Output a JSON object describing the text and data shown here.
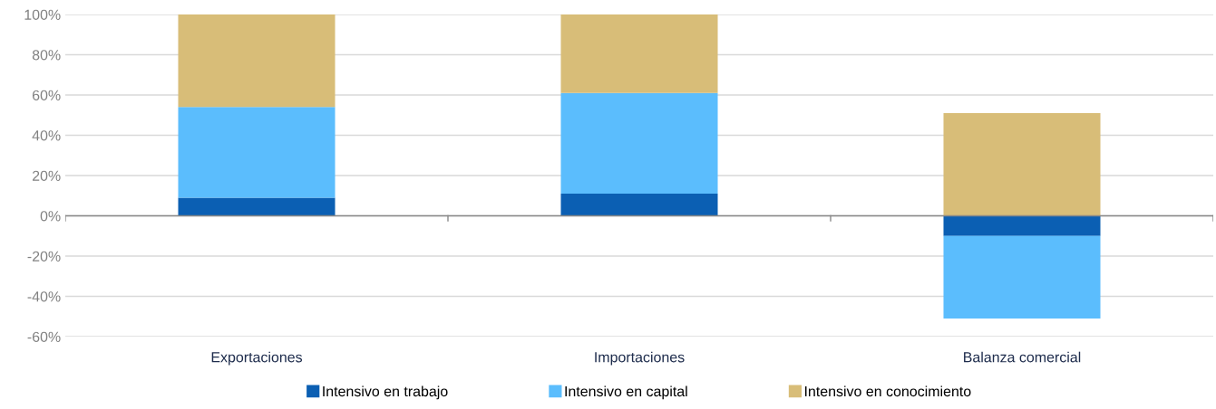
{
  "chart_data": {
    "type": "bar",
    "stacked": true,
    "categories": [
      "Exportaciones",
      "Importaciones",
      "Balanza comercial"
    ],
    "series": [
      {
        "name": "Intensivo en trabajo",
        "color": "#0b5fb3",
        "values": [
          9,
          11,
          -10
        ]
      },
      {
        "name": "Intensivo en capital",
        "color": "#5bbdfd",
        "values": [
          45,
          50,
          -41
        ]
      },
      {
        "name": "Intensivo en conocimiento",
        "color": "#d8bd78",
        "values": [
          46,
          39,
          51
        ]
      }
    ],
    "ylim": [
      -60,
      100
    ],
    "yticks": [
      {
        "value": -60,
        "label": "-60%"
      },
      {
        "value": -40,
        "label": "-40%"
      },
      {
        "value": -20,
        "label": "-20%"
      },
      {
        "value": 0,
        "label": "0%"
      },
      {
        "value": 20,
        "label": "20%"
      },
      {
        "value": 40,
        "label": "40%"
      },
      {
        "value": 60,
        "label": "60%"
      },
      {
        "value": 80,
        "label": "80%"
      },
      {
        "value": 100,
        "label": "100%"
      }
    ],
    "grid": "y",
    "legend": "bottom"
  }
}
